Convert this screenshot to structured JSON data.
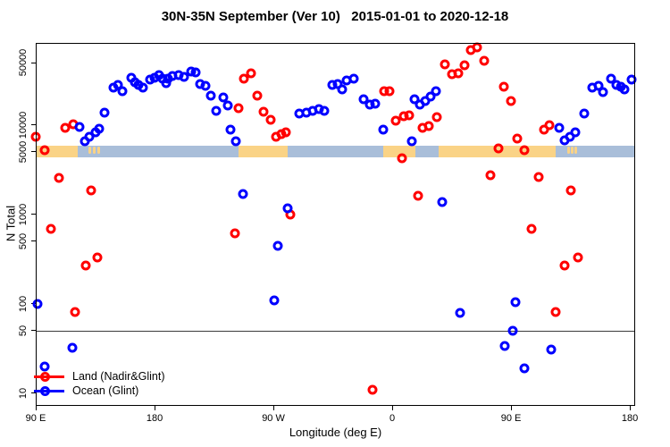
{
  "title": "30N-35N September (Ver 10)   2015-01-01 to 2020-12-18",
  "legend": {
    "items": [
      {
        "key": "land",
        "label": "Land (Nadir&Glint)",
        "color": "#ff0000"
      },
      {
        "key": "ocean",
        "label": "Ocean (Glint)",
        "color": "#0000ff"
      }
    ]
  },
  "chart_data": {
    "type": "scatter",
    "title": "30N-35N September (Ver 10)   2015-01-01 to 2020-12-18",
    "xlabel": "Longitude (deg E)",
    "ylabel": "N Total",
    "x_axis": {
      "note": "degrees east, axis runs 90E eastward wrapping past 180 and 0 back to 180 (values 90..544)",
      "xlim": [
        90,
        544
      ],
      "ticks": [
        {
          "value": 90,
          "label": "90 E"
        },
        {
          "value": 180,
          "label": "180"
        },
        {
          "value": 270,
          "label": "90 W"
        },
        {
          "value": 360,
          "label": "0"
        },
        {
          "value": 450,
          "label": "90 E"
        },
        {
          "value": 540,
          "label": "180"
        }
      ]
    },
    "y_axis": {
      "scale": "log10",
      "ylim": [
        7.2,
        83000
      ],
      "ticks": [
        {
          "value": 10,
          "label": "10"
        },
        {
          "value": 50,
          "label": "50"
        },
        {
          "value": 100,
          "label": "100"
        },
        {
          "value": 500,
          "label": "500"
        },
        {
          "value": 1000,
          "label": "1000"
        },
        {
          "value": 5000,
          "label": "5000"
        },
        {
          "value": 10000,
          "label": "10000"
        },
        {
          "value": 50000,
          "label": "50000"
        }
      ]
    },
    "reference_line_y": 50,
    "colors": {
      "land": "#ff0000",
      "ocean": "#0000ff",
      "strip_land": "#fad386",
      "strip_ocean": "#a9bed9",
      "axis": "#000000",
      "reference_line": "#3a3a3a"
    },
    "strip": {
      "description": "land/ocean surface map band across 30N-35N",
      "N_top": 5900,
      "N_bottom": 4400,
      "segments": [
        {
          "from": 90.0,
          "to": 121.8,
          "surface": "land"
        },
        {
          "from": 121.8,
          "to": 243.5,
          "surface": "ocean"
        },
        {
          "from": 243.5,
          "to": 280.5,
          "surface": "land"
        },
        {
          "from": 280.5,
          "to": 353.0,
          "surface": "ocean"
        },
        {
          "from": 353.0,
          "to": 377.5,
          "surface": "land"
        },
        {
          "from": 377.5,
          "to": 395.0,
          "surface": "ocean"
        },
        {
          "from": 395.0,
          "to": 484.0,
          "surface": "land"
        },
        {
          "from": 484.0,
          "to": 544.0,
          "surface": "ocean"
        }
      ],
      "islands": [
        [
          129.9,
          132.0
        ],
        [
          133.3,
          135.3
        ],
        [
          136.7,
          138.7
        ],
        [
          492.5,
          494.5
        ],
        [
          495.5,
          497.5
        ],
        [
          498.2,
          500.0
        ]
      ]
    },
    "series": [
      {
        "name": "Land (Nadir&Glint)",
        "color_key": "land",
        "points": [
          [
            90.0,
            7400
          ],
          [
            96.8,
            5250
          ],
          [
            112.3,
            9300
          ],
          [
            118.4,
            10200
          ],
          [
            107.6,
            2570
          ],
          [
            132.0,
            1860
          ],
          [
            101.5,
            690
          ],
          [
            127.9,
            270
          ],
          [
            136.7,
            330
          ],
          [
            119.8,
            81
          ],
          [
            240.9,
            620
          ],
          [
            243.6,
            15500
          ],
          [
            247.7,
            33100
          ],
          [
            253.1,
            38000
          ],
          [
            257.8,
            21400
          ],
          [
            262.5,
            14100
          ],
          [
            268.0,
            11500
          ],
          [
            272.0,
            7400
          ],
          [
            276.1,
            7900
          ],
          [
            279.5,
            8300
          ],
          [
            282.9,
            1000
          ],
          [
            353.9,
            24000
          ],
          [
            358.0,
            24000
          ],
          [
            362.7,
            11200
          ],
          [
            368.8,
            12600
          ],
          [
            372.8,
            12900
          ],
          [
            367.4,
            4270
          ],
          [
            383.0,
            9300
          ],
          [
            387.7,
            9800
          ],
          [
            393.8,
            12300
          ],
          [
            399.9,
            47900
          ],
          [
            405.3,
            37200
          ],
          [
            410.0,
            38000
          ],
          [
            414.8,
            46800
          ],
          [
            419.5,
            69200
          ],
          [
            424.3,
            74100
          ],
          [
            429.7,
            52500
          ],
          [
            440.5,
            5500
          ],
          [
            444.6,
            26900
          ],
          [
            450.0,
            18600
          ],
          [
            454.7,
            7100
          ],
          [
            460.1,
            5250
          ],
          [
            465.6,
            690
          ],
          [
            471.0,
            2630
          ],
          [
            475.0,
            8900
          ],
          [
            479.1,
            10000
          ],
          [
            483.8,
            81
          ],
          [
            490.6,
            270
          ],
          [
            495.3,
            1860
          ],
          [
            500.7,
            330
          ],
          [
            345.1,
            11
          ],
          [
            379.6,
            1620
          ],
          [
            434.4,
            2750
          ]
        ]
      },
      {
        "name": "Ocean (Glint)",
        "color_key": "ocean",
        "points": [
          [
            91.4,
            100
          ],
          [
            96.8,
            20
          ],
          [
            117.7,
            32
          ],
          [
            123.2,
            9550
          ],
          [
            127.2,
            6600
          ],
          [
            130.6,
            7400
          ],
          [
            135.3,
            8300
          ],
          [
            138.0,
            9100
          ],
          [
            142.1,
            13800
          ],
          [
            148.9,
            26300
          ],
          [
            152.3,
            28200
          ],
          [
            155.6,
            24000
          ],
          [
            162.4,
            33900
          ],
          [
            165.1,
            30200
          ],
          [
            167.8,
            28200
          ],
          [
            171.2,
            26300
          ],
          [
            176.6,
            32400
          ],
          [
            180.0,
            33900
          ],
          [
            183.4,
            36300
          ],
          [
            186.1,
            33100
          ],
          [
            188.8,
            29500
          ],
          [
            190.1,
            33100
          ],
          [
            193.5,
            35500
          ],
          [
            198.3,
            36300
          ],
          [
            202.3,
            34700
          ],
          [
            207.7,
            39800
          ],
          [
            211.1,
            38900
          ],
          [
            214.5,
            28800
          ],
          [
            218.6,
            27500
          ],
          [
            222.6,
            21400
          ],
          [
            226.7,
            14500
          ],
          [
            232.1,
            20400
          ],
          [
            235.5,
            16600
          ],
          [
            237.5,
            8900
          ],
          [
            241.6,
            6600
          ],
          [
            247.0,
            1700
          ],
          [
            273.4,
            440
          ],
          [
            270.7,
            110
          ],
          [
            280.8,
            1170
          ],
          [
            289.6,
            13500
          ],
          [
            295.0,
            13800
          ],
          [
            299.8,
            14500
          ],
          [
            304.5,
            15100
          ],
          [
            308.6,
            14500
          ],
          [
            314.7,
            28200
          ],
          [
            318.7,
            28800
          ],
          [
            322.1,
            25100
          ],
          [
            325.5,
            31600
          ],
          [
            330.9,
            33100
          ],
          [
            338.3,
            19500
          ],
          [
            343.1,
            17000
          ],
          [
            347.1,
            17400
          ],
          [
            353.2,
            8900
          ],
          [
            374.8,
            6600
          ],
          [
            376.9,
            19500
          ],
          [
            381.0,
            17000
          ],
          [
            385.0,
            18600
          ],
          [
            389.1,
            20900
          ],
          [
            393.2,
            24000
          ],
          [
            397.9,
            1380
          ],
          [
            411.4,
            79
          ],
          [
            445.3,
            34
          ],
          [
            451.4,
            50
          ],
          [
            453.4,
            105
          ],
          [
            460.1,
            19
          ],
          [
            480.4,
            31
          ],
          [
            486.5,
            9300
          ],
          [
            490.6,
            6800
          ],
          [
            494.6,
            7400
          ],
          [
            498.7,
            8300
          ],
          [
            505.4,
            13500
          ],
          [
            511.5,
            26300
          ],
          [
            516.2,
            27500
          ],
          [
            519.6,
            23400
          ],
          [
            525.7,
            33100
          ],
          [
            529.7,
            28200
          ],
          [
            533.1,
            26900
          ],
          [
            535.8,
            25100
          ],
          [
            541.2,
            32400
          ]
        ]
      }
    ]
  }
}
